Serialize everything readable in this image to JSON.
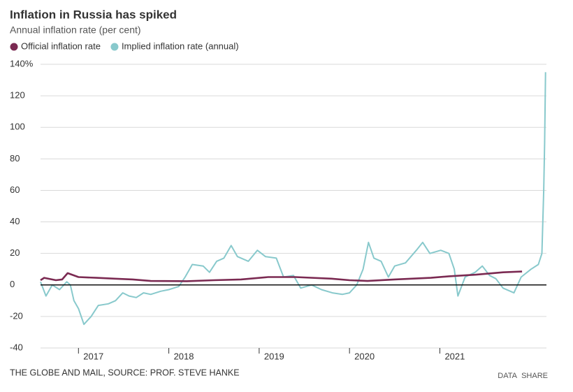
{
  "chart_data": {
    "type": "line",
    "title": "Inflation in Russia has spiked",
    "subtitle": "Annual inflation rate (per cent)",
    "source": "THE GLOBE AND MAIL, SOURCE: PROF. STEVE HANKE",
    "links": [
      "DATA",
      "SHARE"
    ],
    "xlim": [
      2016.58,
      2022.18
    ],
    "xticks": [
      2017,
      2018,
      2019,
      2020,
      2021
    ],
    "ylim": [
      -40,
      140
    ],
    "yticks": [
      -40,
      -20,
      0,
      20,
      40,
      60,
      80,
      100,
      120,
      {
        "value": 140,
        "label": "140%"
      }
    ],
    "grid": true,
    "legend": "top-left",
    "series": [
      {
        "name": "Official inflation rate",
        "color": "#7b2a52",
        "x": [
          2016.58,
          2016.62,
          2016.75,
          2016.82,
          2016.88,
          2017.0,
          2017.2,
          2017.4,
          2017.6,
          2017.8,
          2018.2,
          2018.5,
          2018.8,
          2019.1,
          2019.4,
          2019.8,
          2020.0,
          2020.2,
          2020.5,
          2020.9,
          2021.1,
          2021.4,
          2021.7,
          2021.91
        ],
        "values": [
          3,
          4.5,
          3,
          3.5,
          7.5,
          5,
          4.5,
          4,
          3.5,
          2.5,
          2.4,
          3,
          3.5,
          5,
          5,
          4,
          3,
          2.5,
          3.5,
          4.5,
          5.5,
          6.5,
          8,
          8.5
        ]
      },
      {
        "name": "Implied inflation rate (annual)",
        "color": "#88c9cc",
        "x": [
          2016.58,
          2016.64,
          2016.71,
          2016.79,
          2016.87,
          2016.91,
          2016.95,
          2017.0,
          2017.06,
          2017.14,
          2017.22,
          2017.33,
          2017.41,
          2017.49,
          2017.56,
          2017.64,
          2017.72,
          2017.8,
          2017.91,
          2018.0,
          2018.11,
          2018.18,
          2018.26,
          2018.38,
          2018.45,
          2018.53,
          2018.61,
          2018.69,
          2018.76,
          2018.88,
          2018.98,
          2019.07,
          2019.19,
          2019.27,
          2019.38,
          2019.46,
          2019.58,
          2019.69,
          2019.81,
          2019.92,
          2020.0,
          2020.08,
          2020.15,
          2020.21,
          2020.27,
          2020.35,
          2020.43,
          2020.5,
          2020.62,
          2020.74,
          2020.81,
          2020.89,
          2021.01,
          2021.1,
          2021.16,
          2021.2,
          2021.28,
          2021.39,
          2021.47,
          2021.55,
          2021.62,
          2021.7,
          2021.82,
          2021.9,
          2022.01,
          2022.09,
          2022.13,
          2022.15,
          2022.16,
          2022.17
        ],
        "values": [
          2,
          -7,
          0,
          -3,
          2,
          0,
          -10,
          -15,
          -25,
          -20,
          -13,
          -12,
          -10,
          -5,
          -7,
          -8,
          -5,
          -6,
          -4,
          -3,
          -1,
          5,
          13,
          12,
          8,
          15,
          17,
          25,
          18,
          15,
          22,
          18,
          17,
          5,
          6,
          -2,
          0,
          -3,
          -5,
          -6,
          -5,
          0,
          10,
          27,
          17,
          15,
          5,
          12,
          14,
          22,
          27,
          20,
          22,
          20,
          10,
          -7,
          5,
          8,
          12,
          6,
          4,
          -2,
          -5,
          5,
          10,
          13,
          20,
          60,
          90,
          135
        ]
      }
    ]
  }
}
